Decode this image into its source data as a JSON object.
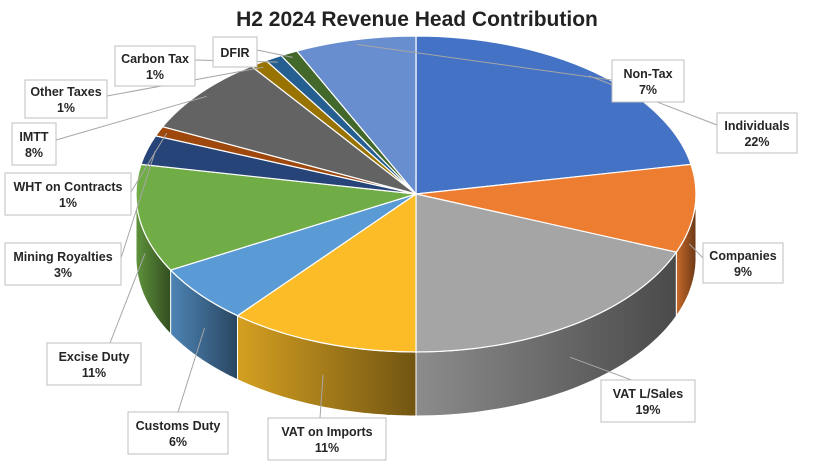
{
  "chart_data": {
    "type": "pie",
    "style": "3d-exploded",
    "title": "H2 2024 Revenue Head Contribution",
    "slices": [
      {
        "name": "Individuals",
        "value": 22,
        "label": "22%",
        "color": "#4472C4"
      },
      {
        "name": "Companies",
        "value": 9,
        "label": "9%",
        "color": "#ED7D31"
      },
      {
        "name": "VAT L/Sales",
        "value": 19,
        "label": "19%",
        "color": "#A5A5A5"
      },
      {
        "name": "VAT on Imports",
        "value": 11,
        "label": "11%",
        "color": "#FBBC27"
      },
      {
        "name": "Customs Duty",
        "value": 6,
        "label": "6%",
        "color": "#5B9BD5"
      },
      {
        "name": "Excise Duty",
        "value": 11,
        "label": "11%",
        "color": "#70AD47"
      },
      {
        "name": "Mining Royalties",
        "value": 3,
        "label": "3%",
        "color": "#264478"
      },
      {
        "name": "WHT on Contracts",
        "value": 1,
        "label": "1%",
        "color": "#9E480E"
      },
      {
        "name": "IMTT",
        "value": 8,
        "label": "8%",
        "color": "#636363"
      },
      {
        "name": "Other Taxes",
        "value": 1,
        "label": "1%",
        "color": "#997300"
      },
      {
        "name": "Carbon Tax",
        "value": 1,
        "label": "1%",
        "color": "#255E91"
      },
      {
        "name": "DFIR",
        "value": 1,
        "label": "",
        "color": "#43682B"
      },
      {
        "name": "Non-Tax",
        "value": 7,
        "label": "7%",
        "color": "#698ED0"
      }
    ]
  }
}
